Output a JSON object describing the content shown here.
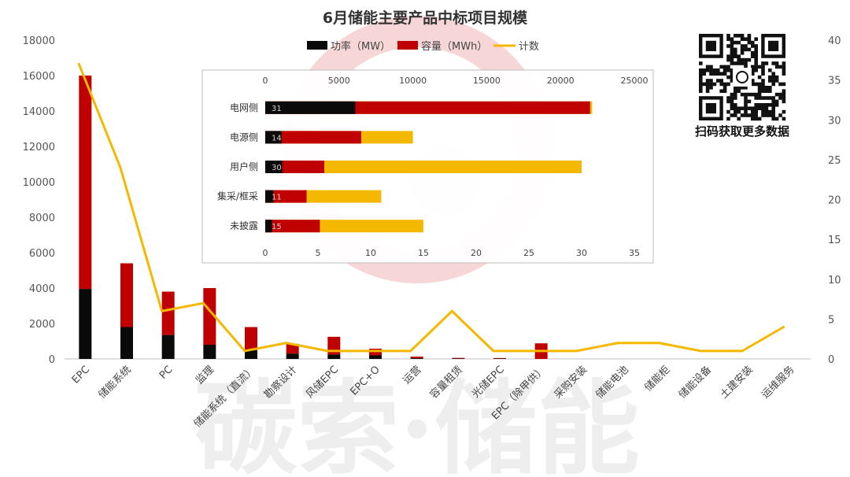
{
  "watermark": {
    "text": "碳索·储能"
  },
  "qr": {
    "caption": "扫码获取更多数据"
  },
  "colors": {
    "power": "#0a0a0a",
    "capacity": "#c00000",
    "count": "#f5b800",
    "inner_count": "#f5b800"
  },
  "chart_data": [
    {
      "type": "bar",
      "title": "6月储能主要产品中标项目规模",
      "legend": [
        "功率（MW）",
        "容量（MWh）",
        "计数"
      ],
      "legend_position": "top",
      "categories": [
        "EPC",
        "储能系统",
        "PC",
        "监理",
        "储能系统（直流）",
        "勘察设计",
        "风储EPC",
        "EPC+O",
        "运营",
        "容量租赁",
        "光储EPC",
        "EPC（除甲供）",
        "采购安装",
        "储能电池",
        "储能柜",
        "储能设备",
        "土建安装",
        "运维服务"
      ],
      "series": [
        {
          "name": "功率（MW）",
          "axis": "left",
          "values": [
            3950,
            1800,
            1350,
            800,
            500,
            300,
            250,
            200,
            40,
            20,
            20,
            0,
            0,
            0,
            0,
            0,
            0,
            0
          ]
        },
        {
          "name": "容量（MWh）",
          "axis": "left",
          "values": [
            16000,
            5400,
            3800,
            4000,
            1800,
            850,
            1250,
            580,
            130,
            60,
            50,
            880,
            0,
            0,
            0,
            0,
            0,
            0
          ]
        },
        {
          "name": "计数",
          "axis": "right",
          "type": "line",
          "values": [
            37,
            24,
            6,
            7,
            1,
            2,
            1,
            1,
            1,
            6,
            1,
            1,
            1,
            2,
            2,
            1,
            1,
            4
          ]
        }
      ],
      "ylim_left": [
        0,
        18000
      ],
      "yticks_left": [
        0,
        2000,
        4000,
        6000,
        8000,
        10000,
        12000,
        14000,
        16000,
        18000
      ],
      "ylim_right": [
        0,
        40
      ],
      "yticks_right": [
        0,
        5,
        10,
        15,
        20,
        25,
        30,
        35,
        40
      ],
      "grid": false
    },
    {
      "type": "bar",
      "orientation": "horizontal",
      "categories": [
        "电网侧",
        "电源侧",
        "用户侧",
        "集采/框采",
        "未披露"
      ],
      "series": [
        {
          "name": "功率（MW）",
          "axis": "top",
          "values": [
            6100,
            1100,
            1150,
            550,
            450
          ]
        },
        {
          "name": "容量（MWh）",
          "axis": "top",
          "values": [
            22000,
            6500,
            4000,
            2800,
            3700
          ]
        },
        {
          "name": "计数",
          "axis": "bottom",
          "values": [
            31,
            14,
            30,
            11,
            15
          ]
        }
      ],
      "count_labels": [
        "31",
        "14",
        "30",
        "11",
        "15"
      ],
      "xlim_top": [
        0,
        25000
      ],
      "xticks_top": [
        0,
        5000,
        10000,
        15000,
        20000,
        25000
      ],
      "xlim_bottom": [
        0,
        35
      ],
      "xticks_bottom": [
        0,
        5,
        10,
        15,
        20,
        25,
        30,
        35
      ]
    }
  ]
}
